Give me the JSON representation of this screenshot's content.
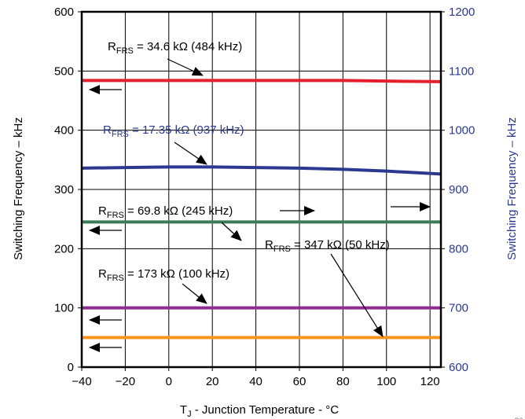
{
  "chart_data": {
    "type": "line",
    "title": "",
    "xlabel": {
      "main": "T",
      "sub": "J",
      "rest": " - Junction Temperature - °C"
    },
    "ylabel": "Switching Frequency – kHz",
    "y2label": "Switching Frequency – kHz",
    "xlim": [
      -40,
      125
    ],
    "ylim": [
      0,
      600
    ],
    "y2lim": [
      600,
      1200
    ],
    "x_ticks": [
      -40,
      -20,
      0,
      20,
      40,
      60,
      80,
      100,
      120
    ],
    "x_tick_labels": [
      "−40",
      "−20",
      "0",
      "20",
      "40",
      "60",
      "80",
      "100",
      "120"
    ],
    "y_ticks": [
      0,
      100,
      200,
      300,
      400,
      500,
      600
    ],
    "y2_ticks": [
      600,
      700,
      800,
      900,
      1000,
      1100,
      1200
    ],
    "grid": true,
    "series": [
      {
        "axis": "left",
        "color": "#e5202e",
        "x": [
          -40,
          -20,
          0,
          20,
          40,
          60,
          80,
          100,
          125
        ],
        "y": [
          484,
          484,
          484,
          484,
          484,
          484,
          484,
          483,
          482
        ],
        "label": {
          "main": "R",
          "sub": "FRS",
          "rest": " = 34.6 kΩ (484 kHz)"
        }
      },
      {
        "axis": "right",
        "color": "#2b3990",
        "x": [
          -40,
          -20,
          0,
          20,
          40,
          60,
          80,
          100,
          125
        ],
        "y": [
          936,
          937,
          938,
          938,
          937,
          936,
          934,
          931,
          926
        ],
        "label": {
          "main": "R",
          "sub": "FRS",
          "rest": " = 17.35 kΩ (937 kHz)"
        }
      },
      {
        "axis": "left",
        "color": "#3d7a5a",
        "x": [
          -40,
          -20,
          0,
          20,
          40,
          60,
          80,
          100,
          125
        ],
        "y": [
          245,
          245,
          245,
          245,
          245,
          245,
          245,
          245,
          245
        ],
        "label": {
          "main": "R",
          "sub": "FRS",
          "rest": " = 69.8 kΩ (245 kHz)"
        }
      },
      {
        "axis": "left",
        "color": "#8e2c8f",
        "x": [
          -40,
          -20,
          0,
          20,
          40,
          60,
          80,
          100,
          125
        ],
        "y": [
          100,
          100,
          100,
          100,
          100,
          100,
          100,
          100,
          100
        ],
        "label": {
          "main": "R",
          "sub": "FRS",
          "rest": " = 173 kΩ (100 kHz)"
        }
      },
      {
        "axis": "left",
        "color": "#f7941d",
        "x": [
          -40,
          -20,
          0,
          20,
          40,
          60,
          80,
          100,
          125
        ],
        "y": [
          50,
          50,
          50,
          50,
          50,
          50,
          50,
          50,
          50
        ],
        "label": {
          "main": "R",
          "sub": "FRS",
          "rest": " = 347 kΩ (50 kHz)"
        }
      }
    ],
    "footnote": "C0"
  }
}
